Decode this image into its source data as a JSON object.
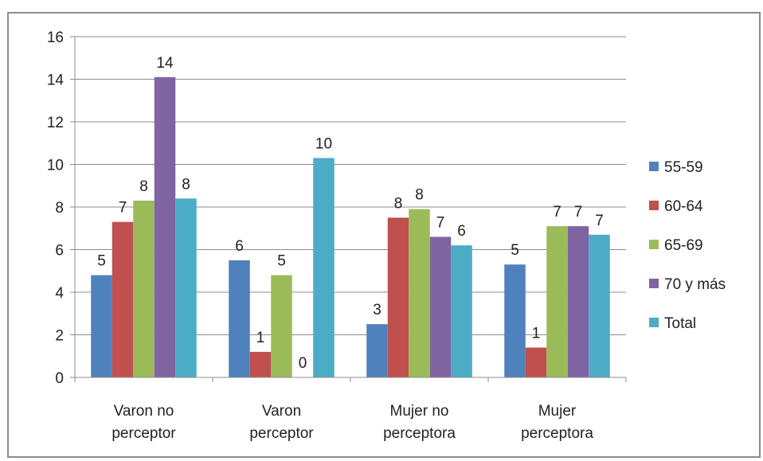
{
  "chart_data": {
    "type": "bar",
    "categories": [
      [
        "Varon no",
        "perceptor"
      ],
      [
        "Varon",
        "perceptor"
      ],
      [
        "Mujer no",
        "perceptora"
      ],
      [
        "Mujer",
        "perceptora"
      ]
    ],
    "series": [
      {
        "name": "55-59",
        "color": "#4f81bd",
        "values": [
          4.8,
          5.5,
          2.5,
          5.3
        ],
        "labels": [
          "5",
          "6",
          "3",
          "5"
        ]
      },
      {
        "name": "60-64",
        "color": "#c0504d",
        "values": [
          7.3,
          1.2,
          7.5,
          1.4
        ],
        "labels": [
          "7",
          "1",
          "8",
          "1"
        ]
      },
      {
        "name": "65-69",
        "color": "#9bbb59",
        "values": [
          8.3,
          4.8,
          7.9,
          7.1
        ],
        "labels": [
          "8",
          "5",
          "8",
          "7"
        ]
      },
      {
        "name": "70 y más",
        "color": "#8064a2",
        "values": [
          14.1,
          0,
          6.6,
          7.1
        ],
        "labels": [
          "14",
          "0",
          "7",
          "7"
        ]
      },
      {
        "name": "Total",
        "color": "#4bacc6",
        "values": [
          8.4,
          10.3,
          6.2,
          6.7
        ],
        "labels": [
          "8",
          "10",
          "6",
          "7"
        ]
      }
    ],
    "y_ticks": [
      "0",
      "2",
      "4",
      "6",
      "8",
      "10",
      "12",
      "14",
      "16"
    ],
    "ylim": [
      0,
      16
    ],
    "title": "",
    "xlabel": "",
    "ylabel": "",
    "grid": true,
    "legend_position": "right"
  }
}
